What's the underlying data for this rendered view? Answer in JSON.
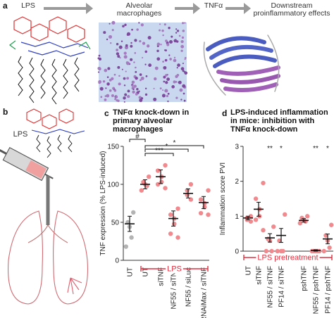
{
  "panel_labels": [
    "a",
    "b",
    "c",
    "d"
  ],
  "flow": [
    "LPS",
    "Alveolar macrophages",
    "TNFα",
    "Downstream proinflammatory effects"
  ],
  "panel_b": {
    "label": "LPS"
  },
  "chart_data": [
    {
      "type": "dot",
      "title": "TNFα knock-down in primary alveolar macrophages",
      "y_label": "TNF expression (% LPS-induced)",
      "categories": [
        "UT",
        "UT",
        "siTNF",
        "NF55 / siTNF",
        "NF55 / siLuc",
        "RNAiMax / siTNF"
      ],
      "colors": [
        "#b3b3b3",
        "#f08a8e",
        "#f08a8e",
        "#f08a8e",
        "#f08a8e",
        "#f08a8e"
      ],
      "points": [
        [
          63,
          50,
          44,
          30,
          18
        ],
        [
          110,
          103,
          100,
          98,
          92
        ],
        [
          125,
          118,
          110,
          103,
          100,
          95
        ],
        [
          68,
          60,
          55,
          48,
          35,
          30
        ],
        [
          100,
          92,
          86,
          80
        ],
        [
          92,
          80,
          75,
          70,
          62,
          60
        ]
      ],
      "means": [
        48,
        100,
        110,
        55,
        88,
        76
      ],
      "errors": [
        10,
        6,
        9,
        10,
        6,
        8
      ],
      "ylim": [
        0,
        150
      ],
      "yticks": [
        0,
        50,
        100,
        150
      ],
      "group_label": "LPS",
      "annotations": [
        "#",
        "*",
        "***",
        "*"
      ]
    },
    {
      "type": "dot",
      "title": "LPS-induced inflammation in mice: inhibition with TNFα knock-down",
      "y_label": "Inflammation score PVI",
      "categories": [
        "UT",
        "siTNF",
        "NF55 / siTNF",
        "PF14 / siTNF",
        "pshTNF",
        "NF55 / pshTNF",
        "PF14 / pshTNF"
      ],
      "colors": [
        "#f08a8e",
        "#f08a8e",
        "#f08a8e",
        "#f08a8e",
        "#f08a8e",
        "#f08a8e",
        "#f08a8e"
      ],
      "points": [
        [
          1.0,
          0.95,
          0.9,
          0.85
        ],
        [
          1.95,
          1.5,
          1.2,
          1.0,
          0.9,
          0.6
        ],
        [
          0.7,
          0.35,
          0.3,
          0,
          0
        ],
        [
          1.05,
          0.3,
          0,
          0,
          0
        ],
        [
          1.0,
          0.95,
          0.9,
          0.85,
          0.8
        ],
        [
          0,
          0,
          0,
          0,
          0
        ],
        [
          0.75,
          0.45,
          0.3,
          0.1,
          0
        ]
      ],
      "means": [
        0.95,
        1.2,
        0.38,
        0.45,
        0.88,
        0.02,
        0.35
      ],
      "errors": [
        0.05,
        0.2,
        0.12,
        0.2,
        0.05,
        0.02,
        0.14
      ],
      "ylim": [
        0,
        3
      ],
      "yticks": [
        0,
        1,
        2,
        3
      ],
      "group_label": "LPS pretreatment",
      "annotations": [
        "**",
        "*",
        "**",
        "*"
      ]
    }
  ]
}
